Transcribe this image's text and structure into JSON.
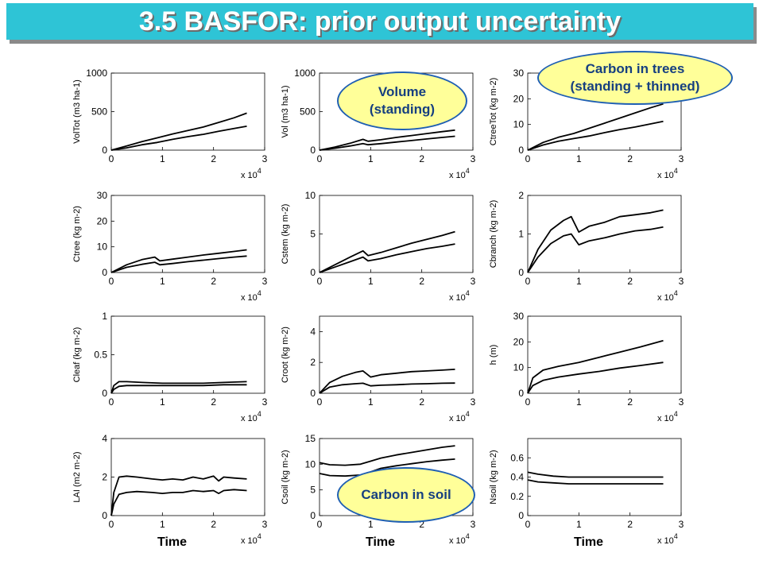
{
  "title": "3.5 BASFOR: prior output uncertainty",
  "colors": {
    "title_bg": "#2ec4d6",
    "title_text": "#ffffff",
    "callout_fill": "#ffff99",
    "callout_border": "#1f5fb3",
    "callout_text": "#163f80"
  },
  "callouts": {
    "volume": {
      "line1": "Volume",
      "line2": "(standing)"
    },
    "trees": {
      "line1": "Carbon in trees",
      "line2": "(standing + thinned)"
    },
    "soil": {
      "line1": "Carbon in soil"
    }
  },
  "x_multiplier": {
    "base": "x 10",
    "exp": "4"
  },
  "time_label": "Time",
  "chart_data": [
    {
      "type": "line",
      "ylabel": "VolTot (m3 ha-1)",
      "xlim": [
        0,
        3
      ],
      "ylim": [
        0,
        1000
      ],
      "xticks": [
        0,
        1,
        2,
        3
      ],
      "yticks": [
        0,
        500,
        1000
      ],
      "series": [
        {
          "x": [
            0,
            0.3,
            0.6,
            0.9,
            1.2,
            1.5,
            1.8,
            2.1,
            2.4,
            2.65
          ],
          "values": [
            0,
            55,
            110,
            160,
            210,
            255,
            300,
            360,
            420,
            480
          ]
        },
        {
          "x": [
            0,
            0.3,
            0.6,
            0.9,
            1.2,
            1.5,
            1.8,
            2.1,
            2.4,
            2.65
          ],
          "values": [
            0,
            30,
            70,
            100,
            140,
            175,
            205,
            245,
            280,
            310
          ]
        }
      ]
    },
    {
      "type": "line",
      "ylabel": "Vol (m3 ha-1)",
      "xlim": [
        0,
        3
      ],
      "ylim": [
        0,
        1000
      ],
      "xticks": [
        0,
        1,
        2,
        3
      ],
      "yticks": [
        0,
        500,
        1000
      ],
      "series": [
        {
          "x": [
            0,
            0.3,
            0.6,
            0.85,
            0.95,
            1.2,
            1.5,
            1.8,
            2.1,
            2.4,
            2.65
          ],
          "values": [
            0,
            40,
            90,
            140,
            115,
            135,
            165,
            190,
            215,
            240,
            260
          ]
        },
        {
          "x": [
            0,
            0.3,
            0.6,
            0.85,
            0.95,
            1.2,
            1.5,
            1.8,
            2.1,
            2.4,
            2.65
          ],
          "values": [
            0,
            25,
            55,
            85,
            70,
            85,
            105,
            125,
            145,
            165,
            180
          ]
        }
      ]
    },
    {
      "type": "line",
      "ylabel": "CtreeTot (kg m-2)",
      "xlim": [
        0,
        3
      ],
      "ylim": [
        0,
        30
      ],
      "xticks": [
        0,
        1,
        2,
        3
      ],
      "yticks": [
        0,
        10,
        20,
        30
      ],
      "series": [
        {
          "x": [
            0,
            0.3,
            0.6,
            0.9,
            1.2,
            1.5,
            1.8,
            2.1,
            2.4,
            2.65
          ],
          "values": [
            0,
            3,
            5,
            6.5,
            8.5,
            10.5,
            12.5,
            14.5,
            16.5,
            18
          ]
        },
        {
          "x": [
            0,
            0.3,
            0.6,
            0.9,
            1.2,
            1.5,
            1.8,
            2.1,
            2.4,
            2.65
          ],
          "values": [
            0,
            2,
            3.5,
            4.5,
            5.5,
            6.8,
            8,
            9,
            10.2,
            11.2
          ]
        }
      ]
    },
    {
      "type": "line",
      "ylabel": "Ctree (kg m-2)",
      "xlim": [
        0,
        3
      ],
      "ylim": [
        0,
        30
      ],
      "xticks": [
        0,
        1,
        2,
        3
      ],
      "yticks": [
        0,
        10,
        20,
        30
      ],
      "series": [
        {
          "x": [
            0,
            0.3,
            0.6,
            0.85,
            0.95,
            1.2,
            1.5,
            1.8,
            2.1,
            2.4,
            2.65
          ],
          "values": [
            0,
            3,
            5,
            6,
            4.5,
            5.2,
            6,
            6.8,
            7.5,
            8.2,
            8.8
          ]
        },
        {
          "x": [
            0,
            0.3,
            0.6,
            0.85,
            0.95,
            1.2,
            1.5,
            1.8,
            2.1,
            2.4,
            2.65
          ],
          "values": [
            0,
            2,
            3.2,
            4,
            3,
            3.5,
            4.2,
            4.8,
            5.4,
            6,
            6.4
          ]
        }
      ]
    },
    {
      "type": "line",
      "ylabel": "Cstem (kg m-2)",
      "xlim": [
        0,
        3
      ],
      "ylim": [
        0,
        10
      ],
      "xticks": [
        0,
        1,
        2,
        3
      ],
      "yticks": [
        0,
        5,
        10
      ],
      "series": [
        {
          "x": [
            0,
            0.3,
            0.6,
            0.85,
            0.95,
            1.2,
            1.5,
            1.8,
            2.1,
            2.4,
            2.65
          ],
          "values": [
            0,
            1,
            2,
            2.8,
            2.2,
            2.6,
            3.2,
            3.8,
            4.3,
            4.8,
            5.3
          ]
        },
        {
          "x": [
            0,
            0.3,
            0.6,
            0.85,
            0.95,
            1.2,
            1.5,
            1.8,
            2.1,
            2.4,
            2.65
          ],
          "values": [
            0,
            0.7,
            1.4,
            2,
            1.5,
            1.8,
            2.3,
            2.7,
            3.1,
            3.4,
            3.7
          ]
        }
      ]
    },
    {
      "type": "line",
      "ylabel": "Cbranch (kg m-2)",
      "xlim": [
        0,
        3
      ],
      "ylim": [
        0,
        2
      ],
      "xticks": [
        0,
        1,
        2,
        3
      ],
      "yticks": [
        0,
        1,
        2
      ],
      "series": [
        {
          "x": [
            0,
            0.2,
            0.45,
            0.7,
            0.85,
            1.0,
            1.2,
            1.5,
            1.8,
            2.1,
            2.4,
            2.65
          ],
          "values": [
            0,
            0.6,
            1.1,
            1.35,
            1.45,
            1.05,
            1.2,
            1.3,
            1.45,
            1.5,
            1.55,
            1.62
          ]
        },
        {
          "x": [
            0,
            0.2,
            0.45,
            0.7,
            0.85,
            1.0,
            1.2,
            1.5,
            1.8,
            2.1,
            2.4,
            2.65
          ],
          "values": [
            0,
            0.4,
            0.75,
            0.95,
            1.0,
            0.72,
            0.82,
            0.9,
            1.0,
            1.08,
            1.12,
            1.18
          ]
        }
      ]
    },
    {
      "type": "line",
      "ylabel": "Cleaf (kg m-2)",
      "xlim": [
        0,
        3
      ],
      "ylim": [
        0,
        1
      ],
      "xticks": [
        0,
        1,
        2,
        3
      ],
      "yticks": [
        0,
        0.5,
        1
      ],
      "series": [
        {
          "x": [
            0,
            0.05,
            0.15,
            0.3,
            0.6,
            1.0,
            1.4,
            1.8,
            2.2,
            2.65
          ],
          "values": [
            0,
            0.1,
            0.15,
            0.15,
            0.14,
            0.13,
            0.13,
            0.13,
            0.14,
            0.15
          ]
        },
        {
          "x": [
            0,
            0.05,
            0.15,
            0.3,
            0.6,
            1.0,
            1.4,
            1.8,
            2.2,
            2.65
          ],
          "values": [
            0,
            0.05,
            0.09,
            0.1,
            0.1,
            0.1,
            0.1,
            0.1,
            0.11,
            0.11
          ]
        }
      ]
    },
    {
      "type": "line",
      "ylabel": "Croot (kg m-2)",
      "xlim": [
        0,
        3
      ],
      "ylim": [
        0,
        5
      ],
      "xticks": [
        0,
        1,
        2,
        3
      ],
      "yticks": [
        0,
        2,
        4
      ],
      "series": [
        {
          "x": [
            0,
            0.2,
            0.45,
            0.7,
            0.85,
            1.0,
            1.2,
            1.5,
            1.8,
            2.1,
            2.4,
            2.65
          ],
          "values": [
            0,
            0.7,
            1.1,
            1.35,
            1.45,
            1.05,
            1.2,
            1.3,
            1.4,
            1.45,
            1.5,
            1.55
          ]
        },
        {
          "x": [
            0,
            0.2,
            0.45,
            0.7,
            0.85,
            1.0,
            1.2,
            1.5,
            1.8,
            2.1,
            2.4,
            2.65
          ],
          "values": [
            0,
            0.4,
            0.55,
            0.62,
            0.65,
            0.48,
            0.52,
            0.55,
            0.6,
            0.62,
            0.65,
            0.66
          ]
        }
      ]
    },
    {
      "type": "line",
      "ylabel": "h (m)",
      "xlim": [
        0,
        3
      ],
      "ylim": [
        0,
        30
      ],
      "xticks": [
        0,
        1,
        2,
        3
      ],
      "yticks": [
        0,
        10,
        20,
        30
      ],
      "series": [
        {
          "x": [
            0,
            0.1,
            0.3,
            0.6,
            1.0,
            1.4,
            1.8,
            2.2,
            2.65
          ],
          "values": [
            0,
            6,
            9,
            10.5,
            12,
            14,
            16,
            18,
            20.5
          ]
        },
        {
          "x": [
            0,
            0.1,
            0.3,
            0.6,
            1.0,
            1.4,
            1.8,
            2.2,
            2.65
          ],
          "values": [
            0,
            3,
            5,
            6.3,
            7.5,
            8.5,
            9.8,
            10.8,
            12
          ]
        }
      ]
    },
    {
      "type": "line",
      "ylabel": "LAI (m2 m-2)",
      "xlim": [
        0,
        3
      ],
      "ylim": [
        0,
        4
      ],
      "xticks": [
        0,
        1,
        2,
        3
      ],
      "yticks": [
        0,
        2,
        4
      ],
      "series": [
        {
          "x": [
            0,
            0.05,
            0.15,
            0.3,
            0.5,
            0.8,
            1.0,
            1.2,
            1.4,
            1.6,
            1.8,
            2.0,
            2.1,
            2.2,
            2.4,
            2.65
          ],
          "values": [
            0,
            1.2,
            2.0,
            2.05,
            2.0,
            1.9,
            1.85,
            1.9,
            1.85,
            2.0,
            1.9,
            2.05,
            1.8,
            2.0,
            1.95,
            1.9
          ]
        },
        {
          "x": [
            0,
            0.05,
            0.15,
            0.3,
            0.5,
            0.8,
            1.0,
            1.2,
            1.4,
            1.6,
            1.8,
            2.0,
            2.1,
            2.2,
            2.4,
            2.65
          ],
          "values": [
            0,
            0.6,
            1.1,
            1.2,
            1.25,
            1.2,
            1.15,
            1.2,
            1.2,
            1.3,
            1.25,
            1.3,
            1.15,
            1.3,
            1.35,
            1.3
          ]
        }
      ]
    },
    {
      "type": "line",
      "ylabel": "Csoil (kg m-2)",
      "xlim": [
        0,
        3
      ],
      "ylim": [
        0,
        15
      ],
      "xticks": [
        0,
        1,
        2,
        3
      ],
      "yticks": [
        0,
        5,
        10,
        15
      ],
      "series": [
        {
          "x": [
            0,
            0.2,
            0.5,
            0.8,
            1.0,
            1.2,
            1.5,
            1.8,
            2.1,
            2.4,
            2.65
          ],
          "values": [
            10.3,
            9.9,
            9.8,
            10.0,
            10.6,
            11.2,
            11.8,
            12.3,
            12.8,
            13.3,
            13.6
          ]
        },
        {
          "x": [
            0,
            0.2,
            0.5,
            0.8,
            1.0,
            1.2,
            1.5,
            1.8,
            2.1,
            2.4,
            2.65
          ],
          "values": [
            8.2,
            7.8,
            7.7,
            7.9,
            8.5,
            9.2,
            9.7,
            10.1,
            10.5,
            10.8,
            11.0
          ]
        }
      ]
    },
    {
      "type": "line",
      "ylabel": "Nsoil (kg m-2)",
      "xlim": [
        0,
        3
      ],
      "ylim": [
        0,
        0.8
      ],
      "xticks": [
        0,
        1,
        2,
        3
      ],
      "yticks": [
        0,
        0.2,
        0.4,
        0.6
      ],
      "series": [
        {
          "x": [
            0,
            0.2,
            0.5,
            0.8,
            1.2,
            1.6,
            2.0,
            2.65
          ],
          "values": [
            0.45,
            0.43,
            0.41,
            0.4,
            0.4,
            0.4,
            0.4,
            0.4
          ]
        },
        {
          "x": [
            0,
            0.2,
            0.5,
            0.8,
            1.2,
            1.6,
            2.0,
            2.65
          ],
          "values": [
            0.37,
            0.35,
            0.34,
            0.33,
            0.33,
            0.33,
            0.33,
            0.33
          ]
        }
      ]
    }
  ]
}
